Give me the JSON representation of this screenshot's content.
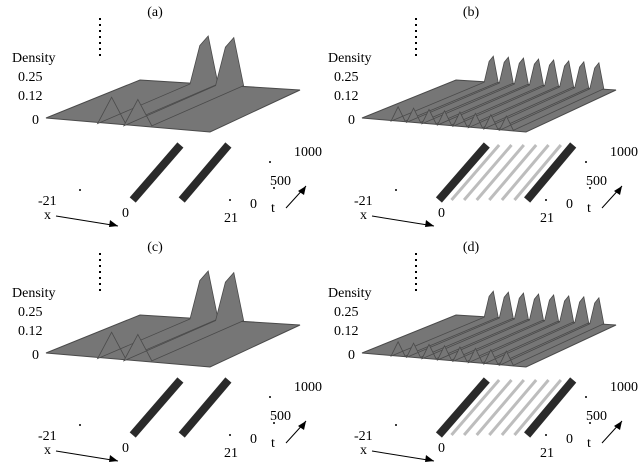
{
  "chart_data": [
    {
      "type": "surface",
      "panel_label": "(a)",
      "zlabel": "Density",
      "z_ticks": [
        "0.25",
        "0.12",
        "0"
      ],
      "x_ticks": [
        "-21",
        "0",
        "21"
      ],
      "xlabel": "x",
      "t_ticks": [
        "0",
        "500",
        "1000"
      ],
      "tlabel": "t",
      "peak_count": 2
    },
    {
      "type": "surface",
      "panel_label": "(b)",
      "zlabel": "Density",
      "z_ticks": [
        "0.25",
        "0.12",
        "0"
      ],
      "x_ticks": [
        "-21",
        "0",
        "21"
      ],
      "xlabel": "x",
      "t_ticks": [
        "0",
        "500",
        "1000"
      ],
      "tlabel": "t",
      "peak_count": 8
    },
    {
      "type": "surface",
      "panel_label": "(c)",
      "zlabel": "Density",
      "z_ticks": [
        "0.25",
        "0.12",
        "0"
      ],
      "x_ticks": [
        "-21",
        "0",
        "21"
      ],
      "xlabel": "x",
      "t_ticks": [
        "0",
        "500",
        "1000"
      ],
      "tlabel": "t",
      "peak_count": 2
    },
    {
      "type": "surface",
      "panel_label": "(d)",
      "zlabel": "Density",
      "z_ticks": [
        "0.25",
        "0.12",
        "0"
      ],
      "x_ticks": [
        "-21",
        "0",
        "21"
      ],
      "xlabel": "x",
      "t_ticks": [
        "0",
        "500",
        "1000"
      ],
      "tlabel": "t",
      "peak_count": 8
    }
  ],
  "colors": {
    "surface": "#767676",
    "surface_edge": "#4a4a4a",
    "stripe_dark": "#2a2a2a",
    "stripe_light": "#bdbdbd"
  }
}
